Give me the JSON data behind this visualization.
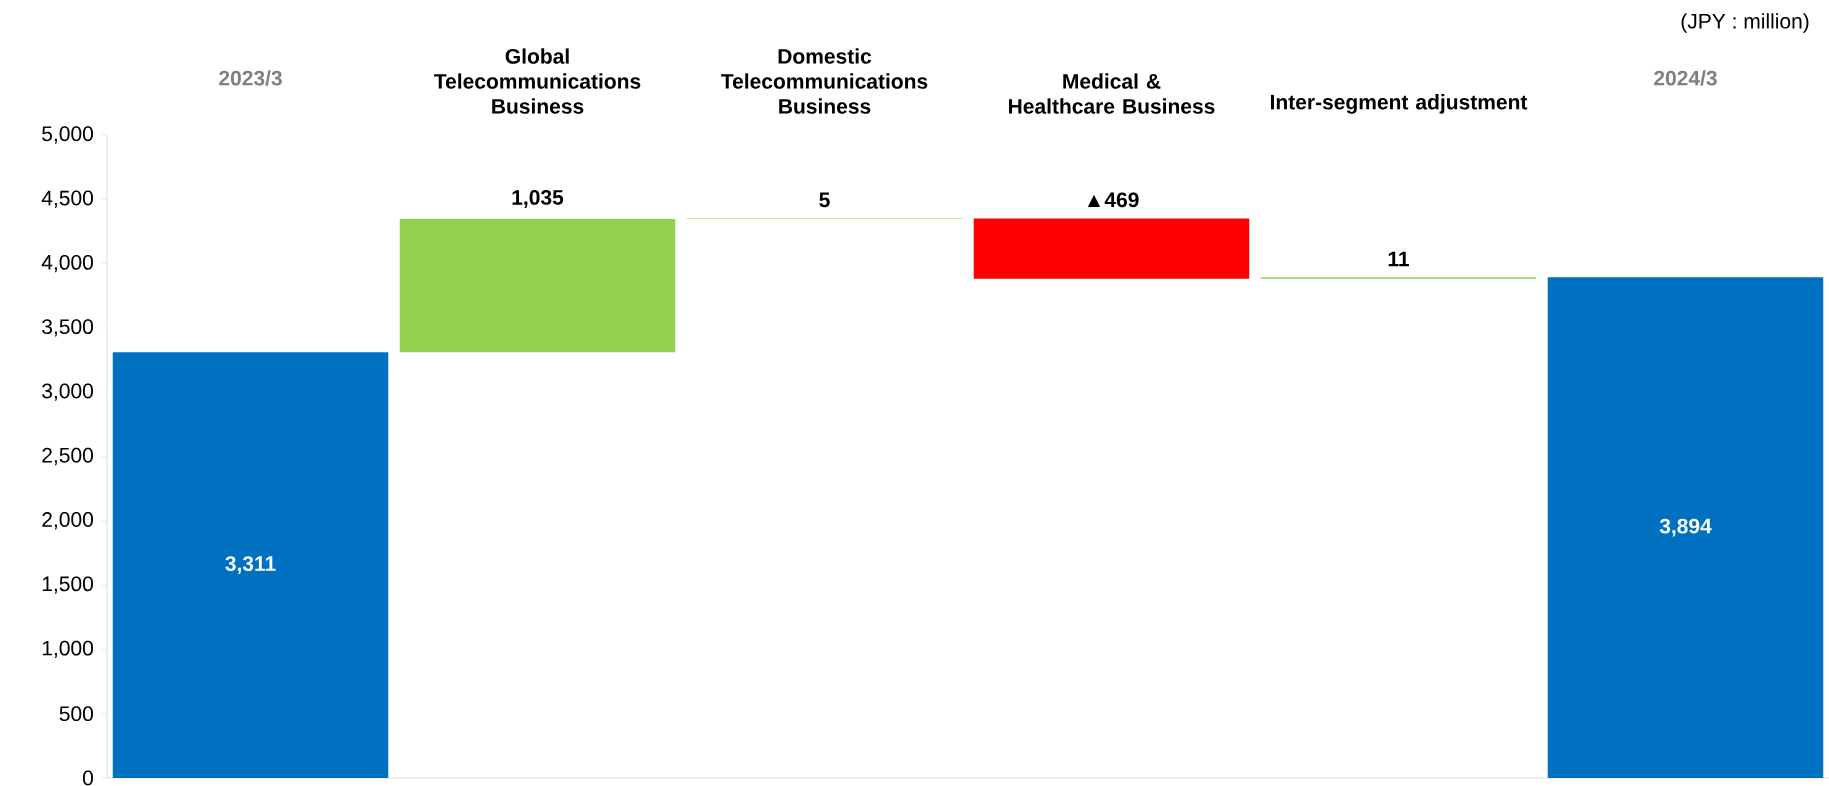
{
  "chart_data": {
    "type": "bar",
    "categories": [
      "2023/3",
      "Global Telecommunications Business",
      "Domestic Telecommunications Business",
      "Medical & Healthcare Business",
      "Inter-segment adjustment",
      "2024/3"
    ],
    "values": [
      3311,
      1035,
      5,
      -469,
      11,
      3894
    ],
    "base": [
      0,
      3311,
      4346,
      4351,
      3882,
      0
    ],
    "colors": [
      "#0070c0",
      "#92d050",
      "#92d050",
      "#ff0000",
      "#92d050",
      "#0070c0"
    ],
    "value_labels": [
      "3,311",
      "1,035",
      "5",
      "▲469",
      "11",
      "3,894"
    ],
    "ylim": [
      0,
      5000
    ],
    "yticks": [
      0,
      500,
      {
        "value": 1000,
        "label": "1,000"
      },
      {
        "value": 1500,
        "label": "1,500"
      },
      {
        "value": 2000,
        "label": "2,000"
      },
      {
        "value": 2500,
        "label": "2,500"
      },
      {
        "value": 3000,
        "label": "3,000"
      },
      {
        "value": 3500,
        "label": "3,500"
      },
      {
        "value": 4000,
        "label": "4,000"
      },
      {
        "value": 4500,
        "label": "4,500"
      },
      {
        "value": 5000,
        "label": "5,000"
      }
    ],
    "annotations": [
      "(JPY : million)"
    ]
  }
}
